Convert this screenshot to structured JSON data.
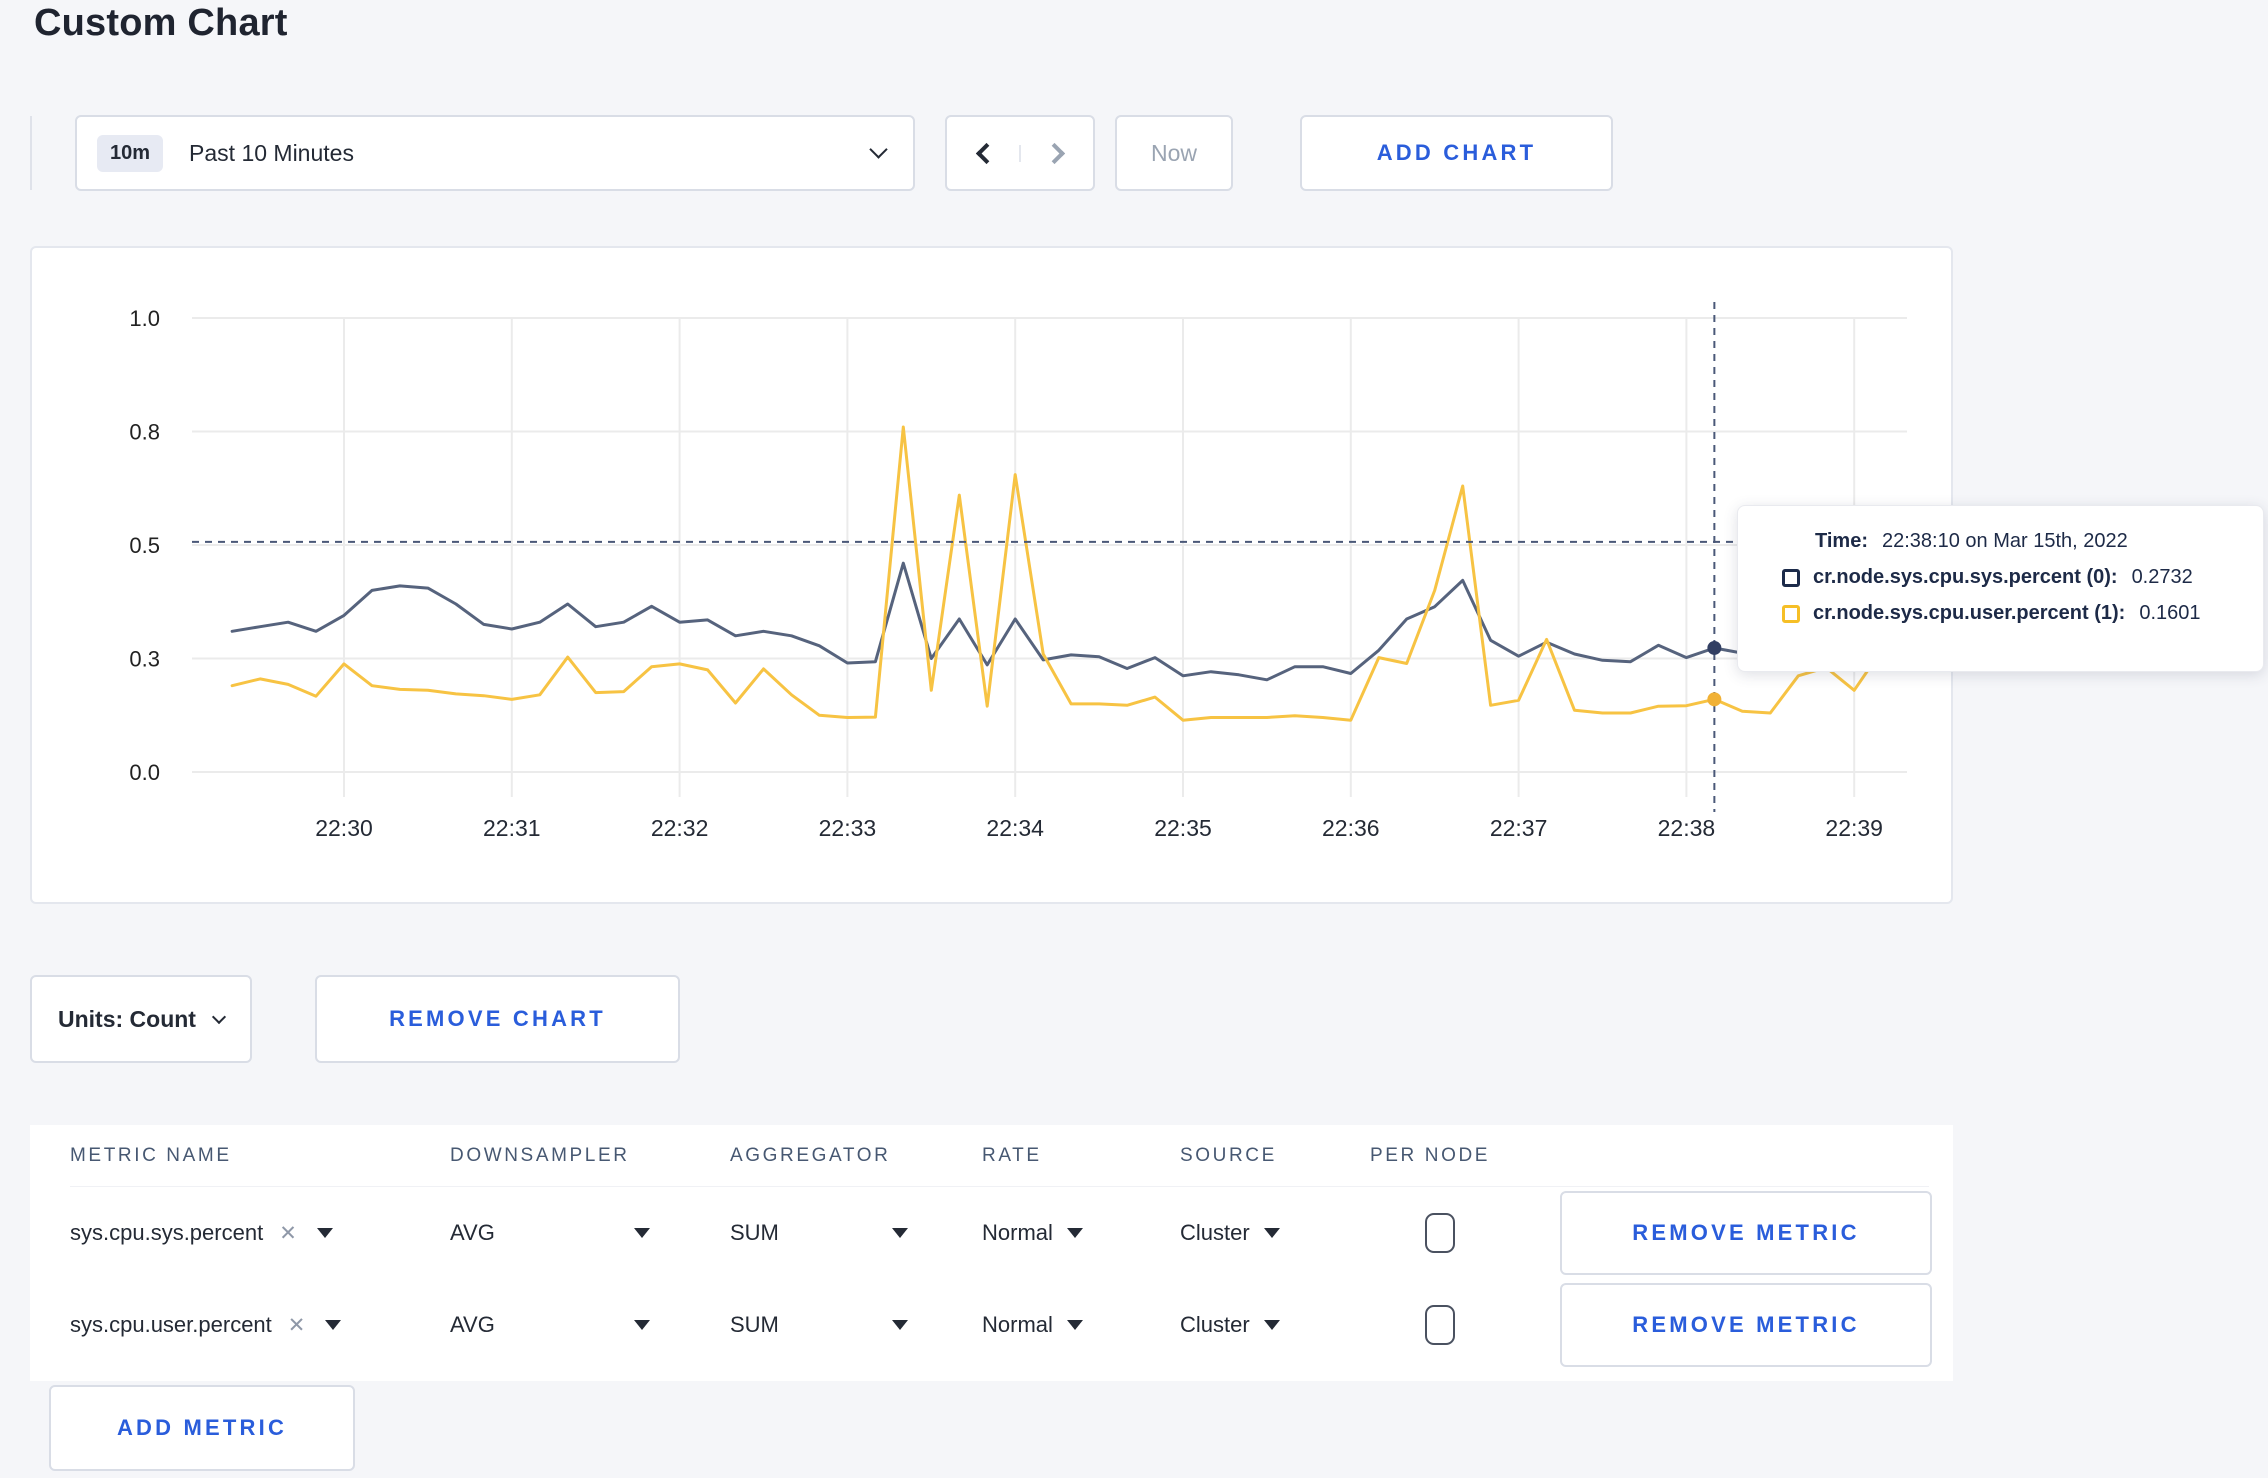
{
  "page": {
    "title": "Custom Chart"
  },
  "theme": {
    "accent_blue": "#2a5ddb",
    "text_dark": "#242a35",
    "slate_header": "#475872",
    "border_gray": "#d9dde6",
    "page_bg": "#f5f6f9",
    "gridline": "#ebebeb",
    "series_sys_line": "#56637d",
    "series_user_line": "#f7c343"
  },
  "toolbar": {
    "range_badge": "10m",
    "range_label": "Past 10 Minutes",
    "back_icon": "chevron-left",
    "forward_icon": "chevron-right",
    "now_label": "Now",
    "add_chart_label": "ADD CHART"
  },
  "chart": {
    "tooltip": {
      "time_label": "Time:",
      "time_value": "22:38:10 on Mar 15th, 2022",
      "series": [
        {
          "name": "cr.node.sys.cpu.sys.percent (0):",
          "value": "0.2732",
          "color": "#1c2b4a"
        },
        {
          "name": "cr.node.sys.cpu.user.percent (1):",
          "value": "0.1601",
          "color": "#f6bf26"
        }
      ]
    },
    "chart_data": {
      "type": "line",
      "title": "",
      "xlabel": "",
      "ylabel": "",
      "ylim": [
        0,
        1
      ],
      "grid": true,
      "legend_position": "tooltip-only",
      "yticks": [
        {
          "v": 0.0,
          "label": "0.0"
        },
        {
          "v": 0.25,
          "label": "0.3"
        },
        {
          "v": 0.5,
          "label": "0.5"
        },
        {
          "v": 0.75,
          "label": "0.8"
        },
        {
          "v": 1.0,
          "label": "1.0"
        }
      ],
      "xticks": [
        "22:30",
        "22:31",
        "22:32",
        "22:33",
        "22:34",
        "22:35",
        "22:36",
        "22:37",
        "22:38",
        "22:39"
      ],
      "x": [
        "22:29:20",
        "22:29:30",
        "22:29:40",
        "22:29:50",
        "22:30:00",
        "22:30:10",
        "22:30:20",
        "22:30:30",
        "22:30:40",
        "22:30:50",
        "22:31:00",
        "22:31:10",
        "22:31:20",
        "22:31:30",
        "22:31:40",
        "22:31:50",
        "22:32:00",
        "22:32:10",
        "22:32:20",
        "22:32:30",
        "22:32:40",
        "22:32:50",
        "22:33:00",
        "22:33:10",
        "22:33:20",
        "22:33:30",
        "22:33:40",
        "22:33:50",
        "22:34:00",
        "22:34:10",
        "22:34:20",
        "22:34:30",
        "22:34:40",
        "22:34:50",
        "22:35:00",
        "22:35:10",
        "22:35:20",
        "22:35:30",
        "22:35:40",
        "22:35:50",
        "22:36:00",
        "22:36:10",
        "22:36:20",
        "22:36:30",
        "22:36:40",
        "22:36:50",
        "22:37:00",
        "22:37:10",
        "22:37:20",
        "22:37:30",
        "22:37:40",
        "22:37:50",
        "22:38:00",
        "22:38:10",
        "22:38:20",
        "22:38:30",
        "22:38:40",
        "22:38:50",
        "22:39:00",
        "22:39:10",
        "22:39:20"
      ],
      "series": [
        {
          "name": "cr.node.sys.cpu.sys.percent",
          "color": "#56637d",
          "values": [
            0.31,
            0.32,
            0.33,
            0.31,
            0.345,
            0.4,
            0.41,
            0.405,
            0.37,
            0.325,
            0.315,
            0.33,
            0.37,
            0.32,
            0.33,
            0.365,
            0.33,
            0.335,
            0.3,
            0.31,
            0.3,
            0.278,
            0.24,
            0.243,
            0.46,
            0.25,
            0.337,
            0.236,
            0.337,
            0.247,
            0.258,
            0.254,
            0.228,
            0.252,
            0.212,
            0.221,
            0.214,
            0.203,
            0.232,
            0.232,
            0.217,
            0.268,
            0.337,
            0.364,
            0.422,
            0.29,
            0.255,
            0.286,
            0.26,
            0.246,
            0.243,
            0.279,
            0.252,
            0.2732,
            0.262,
            0.28,
            0.3,
            0.29,
            0.3,
            0.31,
            0.3
          ]
        },
        {
          "name": "cr.node.sys.cpu.user.percent",
          "color": "#f7c343",
          "values": [
            0.19,
            0.205,
            0.193,
            0.167,
            0.238,
            0.19,
            0.182,
            0.18,
            0.172,
            0.168,
            0.16,
            0.17,
            0.253,
            0.175,
            0.177,
            0.232,
            0.238,
            0.225,
            0.152,
            0.227,
            0.17,
            0.125,
            0.12,
            0.121,
            0.76,
            0.18,
            0.61,
            0.145,
            0.655,
            0.26,
            0.15,
            0.15,
            0.147,
            0.165,
            0.114,
            0.12,
            0.12,
            0.12,
            0.124,
            0.12,
            0.114,
            0.252,
            0.239,
            0.4,
            0.63,
            0.147,
            0.158,
            0.292,
            0.136,
            0.13,
            0.13,
            0.145,
            0.146,
            0.1601,
            0.134,
            0.13,
            0.212,
            0.23,
            0.18,
            0.27,
            0.25
          ]
        }
      ],
      "crosshair": {
        "time": "22:38:10",
        "y": 0.507
      },
      "hover_points": [
        {
          "series": "cr.node.sys.cpu.sys.percent",
          "value": 0.2732,
          "color": "#323f63"
        },
        {
          "series": "cr.node.sys.cpu.user.percent",
          "value": 0.1601,
          "color": "#f1b135"
        }
      ]
    }
  },
  "chart_controls": {
    "units_label": "Units: Count",
    "remove_chart_label": "REMOVE CHART"
  },
  "metrics_table": {
    "headers": [
      "METRIC NAME",
      "DOWNSAMPLER",
      "AGGREGATOR",
      "RATE",
      "SOURCE",
      "PER NODE"
    ],
    "rows": [
      {
        "metric": "sys.cpu.sys.percent",
        "downsampler": "AVG",
        "aggregator": "SUM",
        "rate": "Normal",
        "source": "Cluster",
        "per_node_checked": false,
        "remove_label": "REMOVE METRIC"
      },
      {
        "metric": "sys.cpu.user.percent",
        "downsampler": "AVG",
        "aggregator": "SUM",
        "rate": "Normal",
        "source": "Cluster",
        "per_node_checked": false,
        "remove_label": "REMOVE METRIC"
      }
    ],
    "add_metric_label": "ADD METRIC"
  }
}
